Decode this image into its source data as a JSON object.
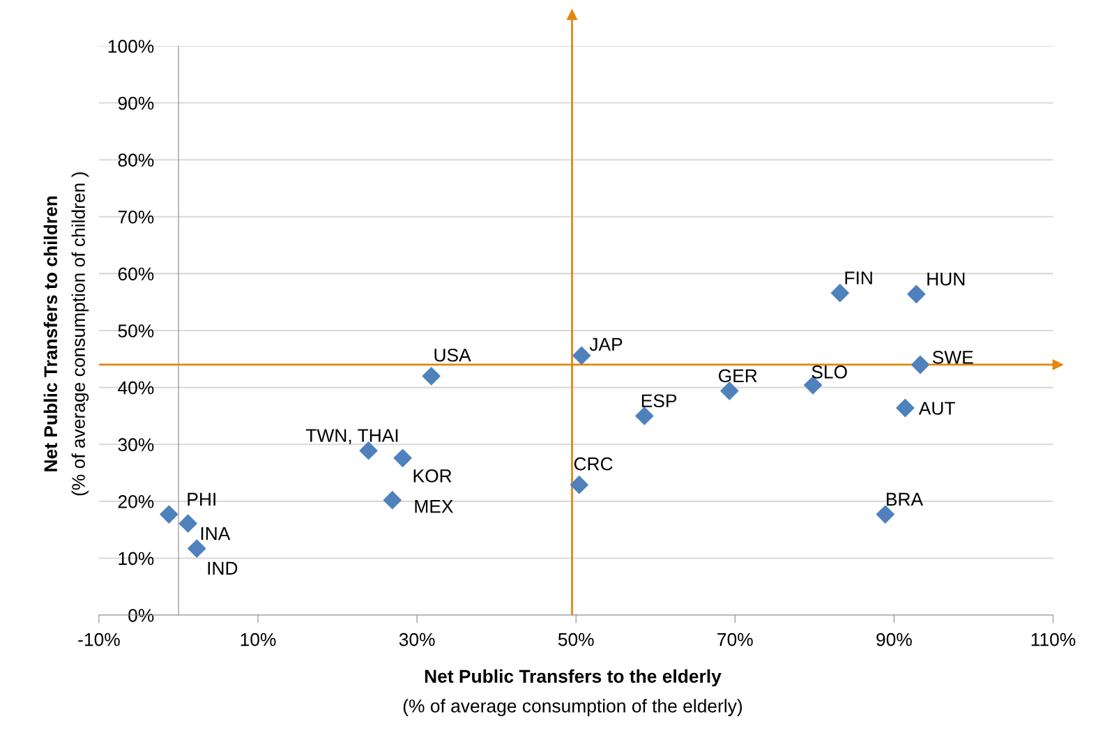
{
  "chart_data": {
    "type": "scatter",
    "xlabel": "Net Public Transfers to the elderly\n(% of average consumption of the elderly)",
    "ylabel": "Net Public Transfers to children\n(% of average consumption of children )",
    "series": [
      {
        "color": "#4f81bd",
        "marker": "diamond",
        "x": [
          -1.2,
          1.2,
          2.3,
          23.9,
          28.2,
          26.9,
          31.8,
          50.4,
          50.7,
          58.6,
          69.3,
          79.8,
          83.2,
          92.8,
          93.3,
          91.4,
          88.9
        ],
        "values": [
          17.7,
          16.1,
          11.7,
          28.9,
          27.6,
          20.2,
          42.0,
          22.9,
          45.6,
          35.0,
          39.4,
          40.4,
          56.6,
          56.4,
          44.0,
          36.4,
          17.7
        ]
      }
    ],
    "annotations": [
      {
        "text": "PHI",
        "x": -1.2,
        "y": 17.7
      },
      {
        "text": "INA",
        "x": 1.2,
        "y": 16.1
      },
      {
        "text": "IND",
        "x": 2.3,
        "y": 11.7
      },
      {
        "text": "TWN, THAI",
        "x": 23.9,
        "y": 28.9
      },
      {
        "text": "KOR",
        "x": 28.2,
        "y": 27.6
      },
      {
        "text": "MEX",
        "x": 26.9,
        "y": 20.2
      },
      {
        "text": "USA",
        "x": 31.8,
        "y": 42.0
      },
      {
        "text": "CRC",
        "x": 50.4,
        "y": 22.9
      },
      {
        "text": "JAP",
        "x": 50.7,
        "y": 45.6
      },
      {
        "text": "ESP",
        "x": 58.6,
        "y": 35.0
      },
      {
        "text": "GER",
        "x": 69.3,
        "y": 39.4
      },
      {
        "text": "SLO",
        "x": 79.8,
        "y": 40.4
      },
      {
        "text": "FIN",
        "x": 83.2,
        "y": 56.6
      },
      {
        "text": "HUN",
        "x": 92.8,
        "y": 56.4
      },
      {
        "text": "SWE",
        "x": 93.3,
        "y": 44.0
      },
      {
        "text": "AUT",
        "x": 91.4,
        "y": 36.4
      },
      {
        "text": "BRA",
        "x": 88.9,
        "y": 17.7
      }
    ],
    "ref_lines": [
      {
        "axis": "x",
        "value": 49.5,
        "color": "#e3860f"
      },
      {
        "axis": "y",
        "value": 44.0,
        "color": "#e3860f"
      }
    ],
    "xlim": [
      -10,
      110
    ],
    "xticks": [
      {
        "value": -10,
        "label": "-10%"
      },
      {
        "value": 10,
        "label": "10%"
      },
      {
        "value": 30,
        "label": "30%"
      },
      {
        "value": 50,
        "label": "50%"
      },
      {
        "value": 70,
        "label": "70%"
      },
      {
        "value": 90,
        "label": "90%"
      },
      {
        "value": 110,
        "label": "110%"
      }
    ],
    "ylim": [
      0,
      100
    ],
    "yticks": [
      {
        "value": 0,
        "label": "0%"
      },
      {
        "value": 10,
        "label": "10%"
      },
      {
        "value": 20,
        "label": "20%"
      },
      {
        "value": 30,
        "label": "30%"
      },
      {
        "value": 40,
        "label": "40%"
      },
      {
        "value": 50,
        "label": "50%"
      },
      {
        "value": 60,
        "label": "60%"
      },
      {
        "value": 70,
        "label": "70%"
      },
      {
        "value": 80,
        "label": "80%"
      },
      {
        "value": 90,
        "label": "90%"
      },
      {
        "value": 100,
        "label": "100%"
      }
    ],
    "grid": "y",
    "legend": false
  }
}
